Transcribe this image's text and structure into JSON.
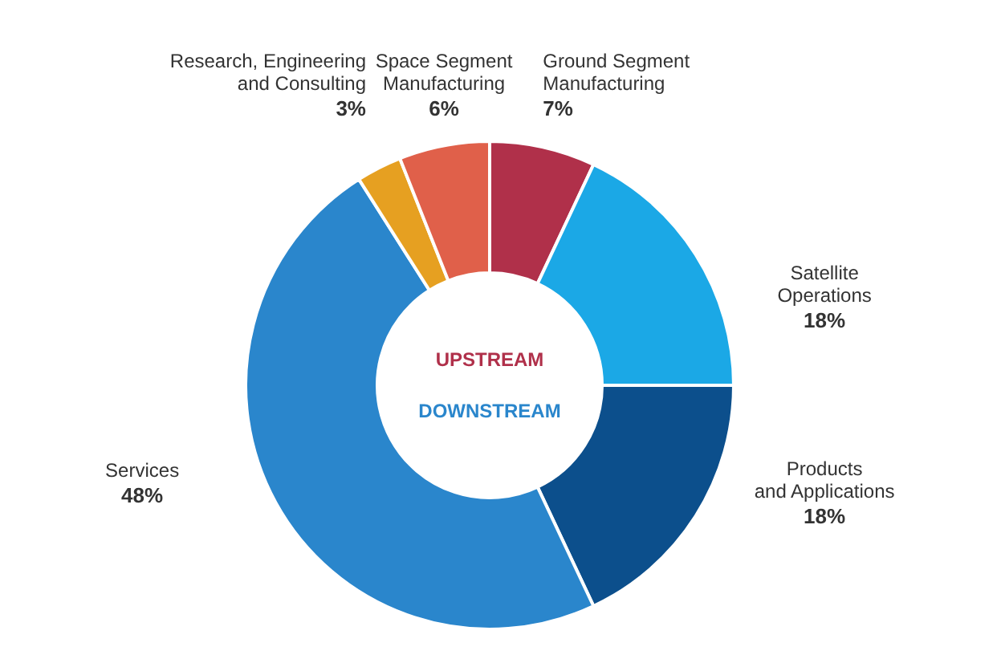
{
  "chart_data": {
    "type": "donut",
    "categories": [
      "Ground Segment\nManufacturing",
      "Satellite\nOperations",
      "Products\nand Applications",
      "Services",
      "Research, Engineering\nand Consulting",
      "Space Segment\nManufacturing"
    ],
    "values": [
      7,
      18,
      18,
      48,
      3,
      6
    ],
    "value_labels": [
      "7%",
      "18%",
      "18%",
      "48%",
      "3%",
      "6%"
    ],
    "colors": [
      "#b0304a",
      "#1ba8e6",
      "#0c4f8c",
      "#2a86cc",
      "#e6a021",
      "#e0604a"
    ],
    "annotations": [
      "UPSTREAM",
      "DOWNSTREAM"
    ]
  }
}
